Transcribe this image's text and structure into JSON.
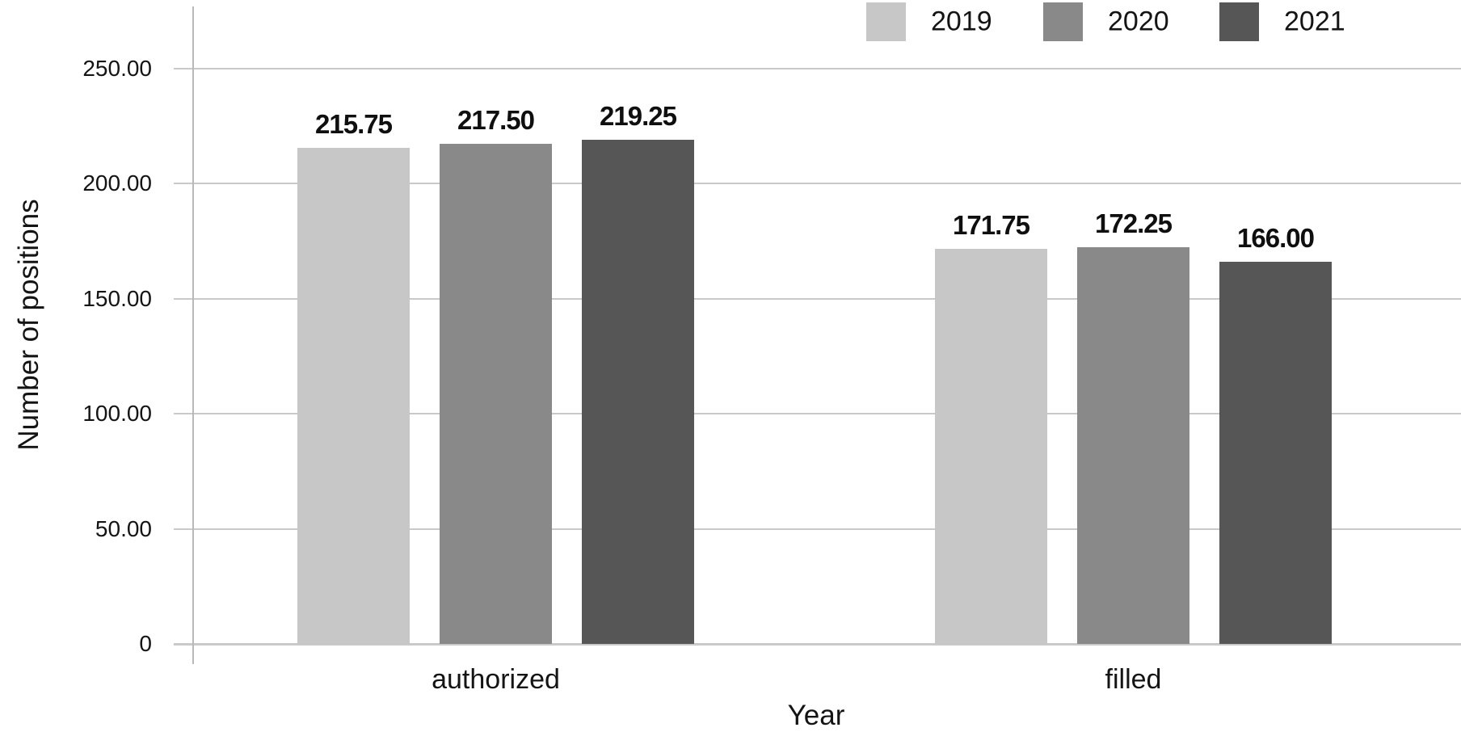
{
  "chart_data": {
    "type": "bar",
    "title": "",
    "xlabel": "Year",
    "ylabel": "Number of positions",
    "categories": [
      "authorized",
      "filled"
    ],
    "series": [
      {
        "name": "2019",
        "color": "#c7c7c7",
        "values": [
          215.75,
          171.75
        ],
        "labels": [
          "215.75",
          "171.75"
        ]
      },
      {
        "name": "2020",
        "color": "#898989",
        "values": [
          217.5,
          172.25
        ],
        "labels": [
          "217.50",
          "172.25"
        ]
      },
      {
        "name": "2021",
        "color": "#565656",
        "values": [
          219.25,
          166.0
        ],
        "labels": [
          "219.25",
          "166.00"
        ]
      }
    ],
    "ylim": [
      0,
      250
    ],
    "yticks": [
      {
        "value": 0,
        "label": "0"
      },
      {
        "value": 50,
        "label": "50.00"
      },
      {
        "value": 100,
        "label": "100.00"
      },
      {
        "value": 150,
        "label": "150.00"
      },
      {
        "value": 200,
        "label": "200.00"
      },
      {
        "value": 250,
        "label": "250.00"
      }
    ],
    "grid": "horizontal",
    "legend_position": "top-right",
    "colors": {
      "grid": "#c9c9c9",
      "axis": "#b9b9b9",
      "text": "#141414"
    }
  }
}
